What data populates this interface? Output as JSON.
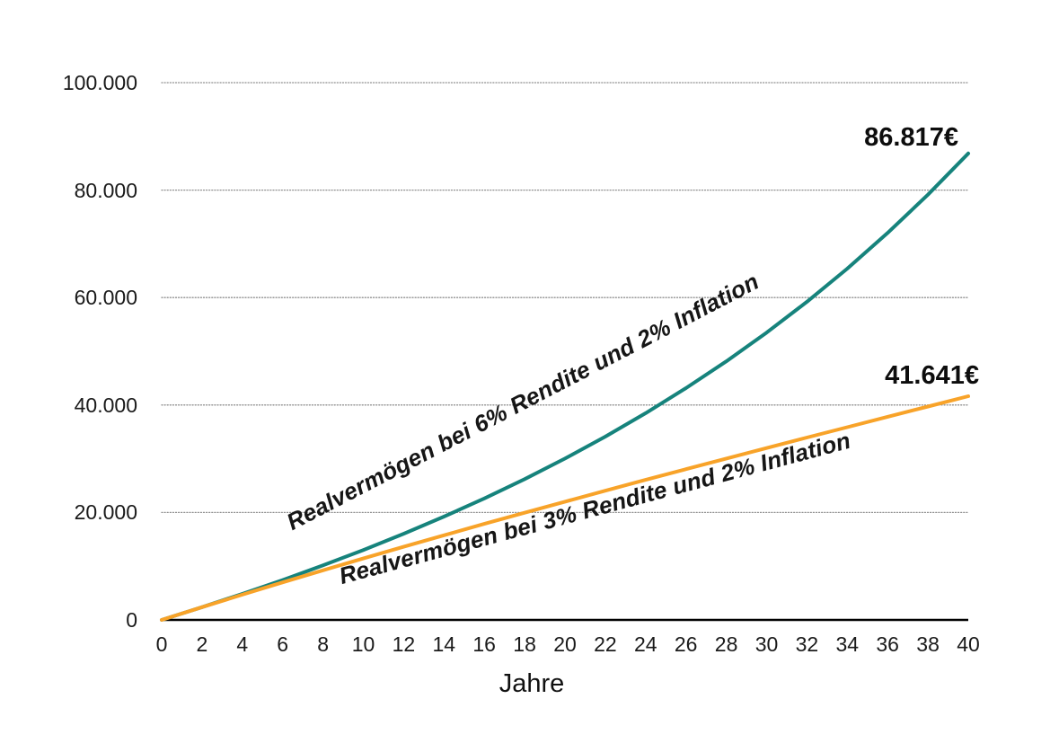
{
  "chart_data": {
    "type": "line",
    "title": "",
    "xlabel": "Jahre",
    "ylabel": "",
    "xlim": [
      0,
      40
    ],
    "ylim": [
      0,
      100000
    ],
    "grid": "horizontal-dotted",
    "legend_position": "inline-rotated-labels",
    "x_ticks": [
      0,
      2,
      4,
      6,
      8,
      10,
      12,
      14,
      16,
      18,
      20,
      22,
      24,
      26,
      28,
      30,
      32,
      34,
      36,
      38,
      40
    ],
    "y_ticks": [
      {
        "label": "100.000",
        "value": 100000
      },
      {
        "label": "80.000",
        "value": 80000
      },
      {
        "label": "60.000",
        "value": 60000
      },
      {
        "label": "40.000",
        "value": 40000
      },
      {
        "label": "20.000",
        "value": 20000
      },
      {
        "label": "0",
        "value": 0
      }
    ],
    "x": [
      0,
      2,
      4,
      6,
      8,
      10,
      12,
      14,
      16,
      18,
      20,
      22,
      24,
      26,
      28,
      30,
      32,
      34,
      36,
      38,
      40
    ],
    "series": [
      {
        "name": "Realvermögen bei 6% Rendite und 2% Inflation",
        "color": "#16837C",
        "end_label": "86.817€",
        "end_value": 86817,
        "values": [
          0,
          2369,
          4842,
          7431,
          10150,
          13011,
          16031,
          19226,
          22613,
          26211,
          30041,
          34122,
          38482,
          43143,
          48133,
          53482,
          59222,
          65387,
          72016,
          79148,
          86817
        ]
      },
      {
        "name": "Realvermögen bei 3% Rendite und 2% Inflation",
        "color": "#F8A329",
        "end_label": "41.641€",
        "end_value": 41641,
        "values": [
          0,
          2374,
          4702,
          6987,
          9234,
          11443,
          13617,
          15759,
          17871,
          19956,
          22015,
          24049,
          26062,
          28056,
          30033,
          31994,
          33942,
          35877,
          37803,
          39721,
          41641
        ]
      }
    ],
    "colors": {
      "grid": "#8f8f8f",
      "axis": "#000000",
      "text": "#1a1a1a"
    }
  }
}
